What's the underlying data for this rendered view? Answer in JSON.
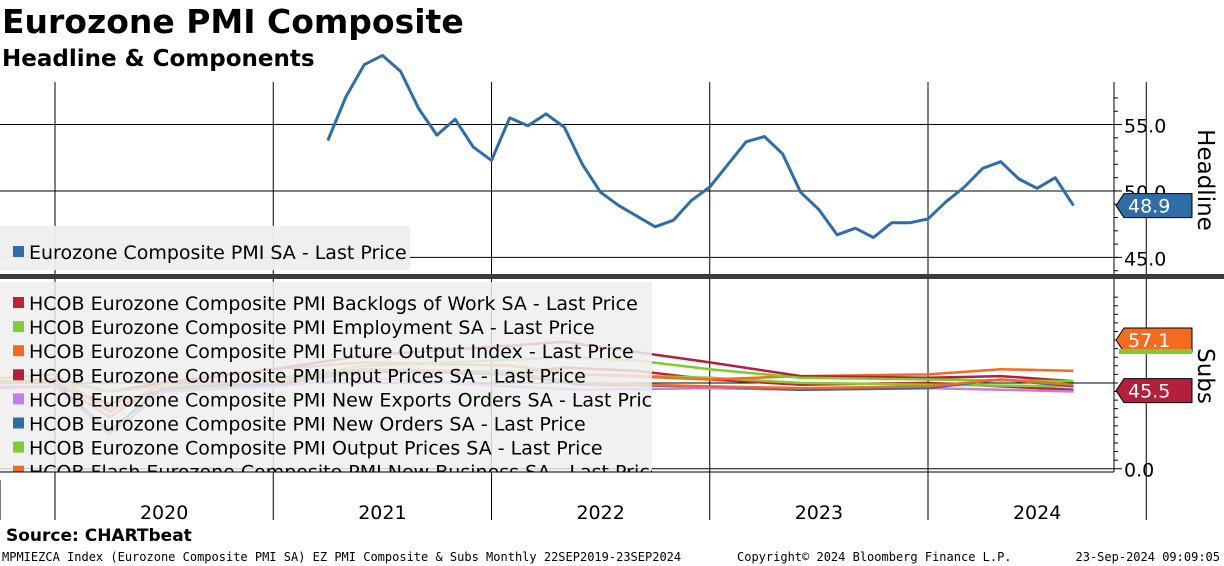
{
  "title": "Eurozone PMI Composite",
  "subtitle": "Headline & Components",
  "source": "Source: CHARTbeat",
  "footer": {
    "left": "MPMIEZCA Index (Eurozone Composite PMI SA) EZ PMI Composite & Subs  Monthly 22SEP2019-23SEP2024",
    "center": "Copyright© 2024 Bloomberg Finance L.P.",
    "right": "23-Sep-2024 09:09:05"
  },
  "chart_data": [
    {
      "type": "line",
      "panel": "top",
      "axis_label": "Headline",
      "y_ticks": [
        "55.0",
        "50.0",
        "45.0"
      ],
      "ylim": [
        43.9,
        58.2
      ],
      "grid": true,
      "legend_placement": "bottom-left",
      "x_year_labels": [
        "2020",
        "2021",
        "2022",
        "2023",
        "2024"
      ],
      "last_value_label": "48.9",
      "series": [
        {
          "name": "Eurozone Composite PMI SA - Last Price",
          "color": "#2f6da8",
          "x": [
            "2021-04",
            "2021-05",
            "2021-06",
            "2021-07",
            "2021-08",
            "2021-09",
            "2021-10",
            "2021-11",
            "2021-12",
            "2022-01",
            "2022-02",
            "2022-03",
            "2022-04",
            "2022-05",
            "2022-06",
            "2022-07",
            "2022-08",
            "2022-09",
            "2022-10",
            "2022-11",
            "2022-12",
            "2023-01",
            "2023-02",
            "2023-03",
            "2023-04",
            "2023-05",
            "2023-06",
            "2023-07",
            "2023-08",
            "2023-09",
            "2023-10",
            "2023-11",
            "2023-12",
            "2024-01",
            "2024-02",
            "2024-03",
            "2024-04",
            "2024-05",
            "2024-06",
            "2024-07",
            "2024-08",
            "2024-09"
          ],
          "values": [
            53.8,
            57.1,
            59.5,
            60.2,
            59.0,
            56.2,
            54.2,
            55.4,
            53.3,
            52.3,
            55.5,
            54.9,
            55.8,
            54.8,
            52.0,
            49.9,
            48.9,
            48.1,
            47.3,
            47.8,
            49.3,
            50.3,
            52.0,
            53.7,
            54.1,
            52.8,
            49.9,
            48.6,
            46.7,
            47.2,
            46.5,
            47.6,
            47.6,
            47.9,
            49.2,
            50.3,
            51.7,
            52.2,
            50.9,
            50.2,
            51.0,
            48.9
          ]
        }
      ]
    },
    {
      "type": "line",
      "panel": "bottom",
      "axis_label": "Subs",
      "y_ticks": [
        "0.0"
      ],
      "ylim": [
        -1.9,
        110
      ],
      "grid": true,
      "legend_placement": "left",
      "last_value_labels": [
        "57.1",
        "45.5"
      ],
      "x_year_labels": [
        "2020",
        "2021",
        "2022",
        "2023",
        "2024"
      ],
      "series": [
        {
          "name": "HCOB Eurozone Composite PMI Backlogs of Work SA - Last Price",
          "color": "#c0223a"
        },
        {
          "name": "HCOB Eurozone Composite PMI Employment SA - Last Price",
          "color": "#86c93a"
        },
        {
          "name": "HCOB Eurozone Composite PMI Future Output Index - Last Price",
          "color": "#f26b21"
        },
        {
          "name": "HCOB Eurozone Composite PMI Input Prices SA - Last Price",
          "color": "#b31f3d"
        },
        {
          "name": "HCOB Eurozone Composite PMI New Exports Orders SA - Last Price",
          "color": "#c67bec"
        },
        {
          "name": "HCOB Eurozone Composite PMI New Orders SA - Last Price",
          "color": "#2f6da8"
        },
        {
          "name": "HCOB Eurozone Composite PMI Output Prices SA - Last Price",
          "color": "#7dcc2e"
        },
        {
          "name": "HCOB Flash Eurozone Composite PMI New Business SA - Last Price",
          "color": "#f26b21"
        }
      ]
    }
  ]
}
